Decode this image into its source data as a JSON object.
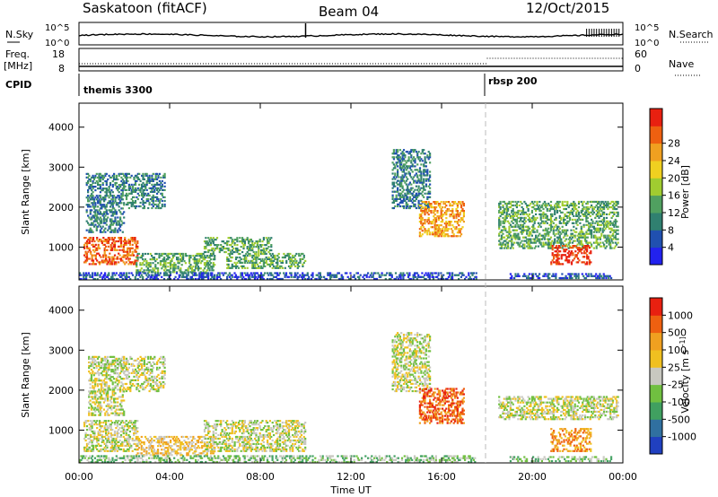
{
  "header": {
    "station": "Saskatoon (fitACF)",
    "beam": "Beam 04",
    "date": "12/Oct/2015"
  },
  "panels": {
    "nsky_label": "N.Sky",
    "nsky_ticks": [
      "10^5",
      "10^0"
    ],
    "nsearch_label": "N.Search",
    "nsearch_ticks": [
      "10^5",
      "10^0"
    ],
    "freq_label": "Freq.",
    "freq_unit": "[MHz]",
    "freq_ticks": [
      "18",
      "8"
    ],
    "nave_label": "Nave",
    "nave_ticks": [
      "60",
      "0"
    ],
    "cpid_label": "CPID",
    "cpid_segments": [
      {
        "name": "themis 3300",
        "start_hour": 0
      },
      {
        "name": "rbsp 200",
        "start_hour": 18
      }
    ]
  },
  "chart_data": [
    {
      "type": "heatmap",
      "name": "power",
      "ylabel": "Slant Range [km]",
      "xlabel": "",
      "xlim": [
        0,
        24
      ],
      "ylim": [
        180,
        4600
      ],
      "yticks": [
        "1000",
        "2000",
        "3000",
        "4000"
      ],
      "colorbar_label": "Power [dB]",
      "colorbar_ticks": [
        "4",
        "8",
        "12",
        "16",
        "20",
        "24",
        "28"
      ],
      "colorbar_colors": [
        "#2222ee",
        "#2050b0",
        "#308070",
        "#50a060",
        "#a0cc30",
        "#f0d020",
        "#f0a020",
        "#ee6010",
        "#e82010"
      ],
      "scatter_regions": [
        {
          "t0": 0.2,
          "t1": 2.6,
          "r0": 600,
          "r1": 1300,
          "level": 7
        },
        {
          "t0": 0.3,
          "t1": 2.0,
          "r0": 1400,
          "r1": 2900,
          "level": 2
        },
        {
          "t0": 2.0,
          "t1": 3.8,
          "r0": 2000,
          "r1": 2900,
          "level": 2
        },
        {
          "t0": 2.5,
          "t1": 6.0,
          "r0": 400,
          "r1": 900,
          "level": 3
        },
        {
          "t0": 5.5,
          "t1": 8.5,
          "r0": 900,
          "r1": 1300,
          "level": 3
        },
        {
          "t0": 6.5,
          "t1": 10.0,
          "r0": 500,
          "r1": 900,
          "level": 3
        },
        {
          "t0": 0.0,
          "t1": 17.6,
          "r0": 180,
          "r1": 420,
          "level": 1
        },
        {
          "t0": 13.8,
          "t1": 15.5,
          "r0": 2000,
          "r1": 3500,
          "level": 2
        },
        {
          "t0": 15.0,
          "t1": 17.0,
          "r0": 1300,
          "r1": 2200,
          "level": 6
        },
        {
          "t0": 18.5,
          "t1": 23.8,
          "r0": 1000,
          "r1": 2200,
          "level": 3
        },
        {
          "t0": 20.8,
          "t1": 22.6,
          "r0": 600,
          "r1": 1100,
          "level": 8
        },
        {
          "t0": 19.0,
          "t1": 23.5,
          "r0": 200,
          "r1": 400,
          "level": 1
        }
      ]
    },
    {
      "type": "heatmap",
      "name": "velocity",
      "ylabel": "Slant Range [km]",
      "xlabel": "Time UT",
      "xlim": [
        0,
        24
      ],
      "ylim": [
        180,
        4600
      ],
      "yticks": [
        "1000",
        "2000",
        "3000",
        "4000"
      ],
      "xticks": [
        "00:00",
        "04:00",
        "08:00",
        "12:00",
        "16:00",
        "20:00",
        "00:00"
      ],
      "colorbar_label": "Velocity [m s^-1]",
      "colorbar_ticks": [
        "1000",
        "500",
        "100",
        "25",
        "-25",
        "-100",
        "-500",
        "-1000"
      ],
      "colorbar_colors": [
        "#2040c0",
        "#3070a0",
        "#40a060",
        "#70c040",
        "#c8c8c0",
        "#f0c020",
        "#f0a020",
        "#ee6010",
        "#e82010"
      ],
      "scatter_regions": [
        {
          "t0": 0.2,
          "t1": 2.6,
          "r0": 500,
          "r1": 1300,
          "level": 4
        },
        {
          "t0": 0.4,
          "t1": 2.0,
          "r0": 1400,
          "r1": 2900,
          "level": 4
        },
        {
          "t0": 2.0,
          "t1": 3.8,
          "r0": 2000,
          "r1": 2900,
          "level": 4
        },
        {
          "t0": 2.5,
          "t1": 6.0,
          "r0": 400,
          "r1": 900,
          "level": 5
        },
        {
          "t0": 5.5,
          "t1": 10.0,
          "r0": 500,
          "r1": 1300,
          "level": 4
        },
        {
          "t0": 0.0,
          "t1": 17.6,
          "r0": 180,
          "r1": 420,
          "level": 3
        },
        {
          "t0": 13.8,
          "t1": 15.5,
          "r0": 2000,
          "r1": 3500,
          "level": 4
        },
        {
          "t0": 15.0,
          "t1": 17.0,
          "r0": 1200,
          "r1": 2100,
          "level": 7
        },
        {
          "t0": 18.5,
          "t1": 23.8,
          "r0": 1300,
          "r1": 1900,
          "level": 4
        },
        {
          "t0": 20.8,
          "t1": 22.6,
          "r0": 500,
          "r1": 1100,
          "level": 6
        },
        {
          "t0": 19.0,
          "t1": 23.5,
          "r0": 200,
          "r1": 400,
          "level": 3
        }
      ]
    }
  ]
}
